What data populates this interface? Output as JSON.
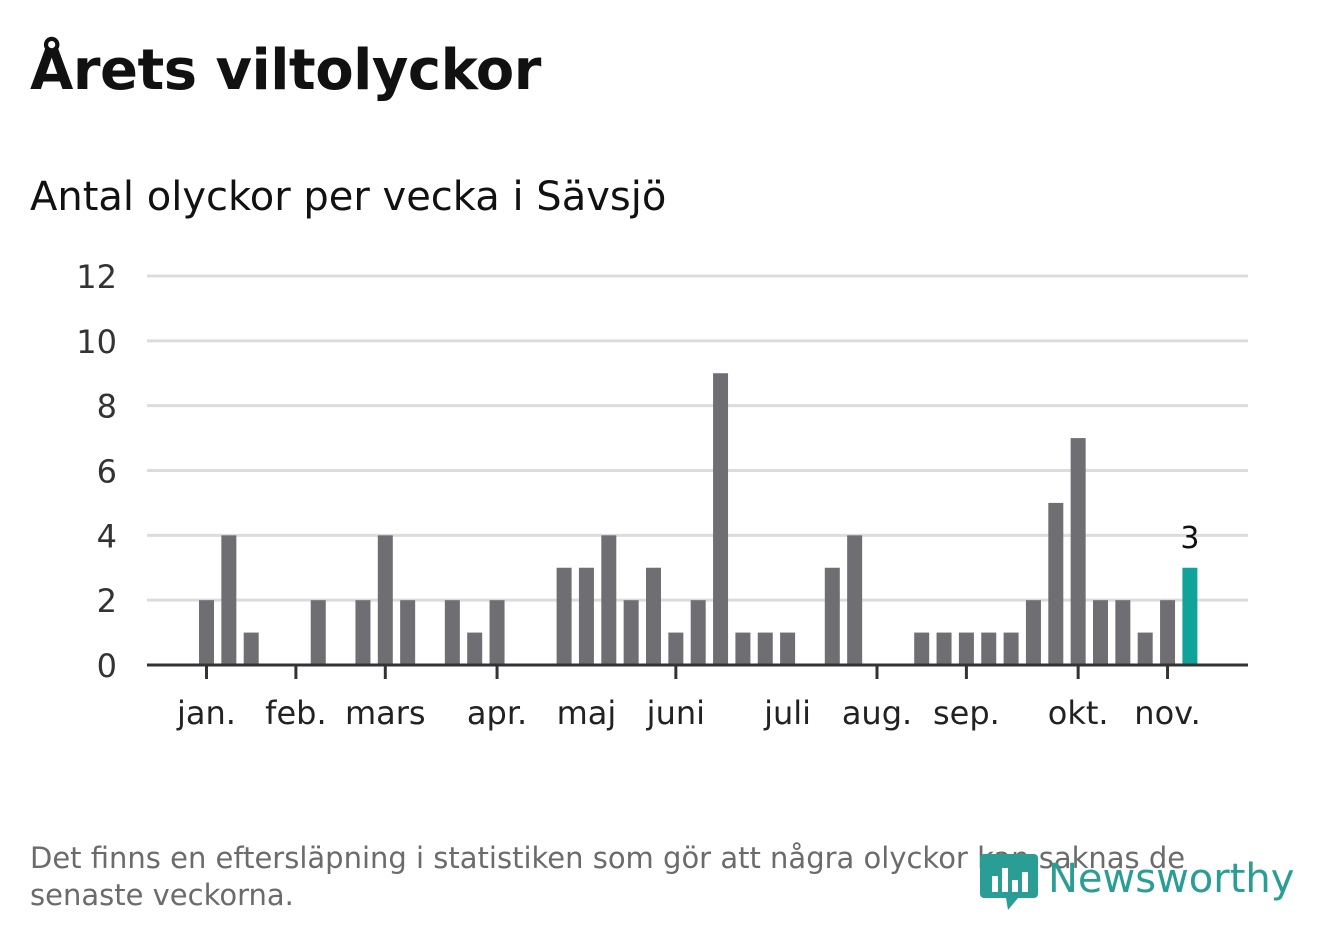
{
  "title": "Årets viltolyckor",
  "subtitle": "Antal olyckor per vecka i Sävsjö",
  "footnote": "Det finns en eftersläpning i statistiken som gör att några olyckor kan saknas de senaste veckorna.",
  "logo": {
    "text": "Newsworthy",
    "icon": "bar-chart-speech-bubble-icon",
    "color": "#2a9d95"
  },
  "chart_data": {
    "type": "bar",
    "ylim": [
      0,
      12
    ],
    "yticks": [
      0,
      2,
      4,
      6,
      8,
      10,
      12
    ],
    "grid": true,
    "bar_color": "#6f6e73",
    "highlight_color": "#0fa39a",
    "weeks": [
      1,
      2,
      3,
      4,
      5,
      6,
      7,
      8,
      9,
      10,
      11,
      12,
      13,
      14,
      15,
      16,
      17,
      18,
      19,
      20,
      21,
      22,
      23,
      24,
      25,
      26,
      27,
      28,
      29,
      30,
      31,
      32,
      33,
      34,
      35,
      36,
      37,
      38,
      39,
      40,
      41,
      42,
      43,
      44,
      45
    ],
    "values": [
      2,
      4,
      1,
      0,
      0,
      2,
      0,
      2,
      4,
      2,
      0,
      2,
      1,
      2,
      0,
      0,
      3,
      3,
      4,
      2,
      3,
      1,
      2,
      9,
      1,
      1,
      1,
      0,
      3,
      4,
      0,
      0,
      1,
      1,
      1,
      1,
      1,
      2,
      5,
      7,
      2,
      2,
      1,
      2,
      3
    ],
    "highlight_index": 44,
    "highlight_label": "3",
    "months": [
      {
        "label": "jan.",
        "week": 1
      },
      {
        "label": "feb.",
        "week": 5
      },
      {
        "label": "mars",
        "week": 9
      },
      {
        "label": "apr.",
        "week": 14
      },
      {
        "label": "maj",
        "week": 18
      },
      {
        "label": "juni",
        "week": 22
      },
      {
        "label": "juli",
        "week": 27
      },
      {
        "label": "aug.",
        "week": 31
      },
      {
        "label": "sep.",
        "week": 35
      },
      {
        "label": "okt.",
        "week": 40
      },
      {
        "label": "nov.",
        "week": 44
      }
    ],
    "month_tick_weeks": [
      1,
      5,
      9,
      14,
      22,
      31,
      35,
      40,
      44
    ]
  }
}
